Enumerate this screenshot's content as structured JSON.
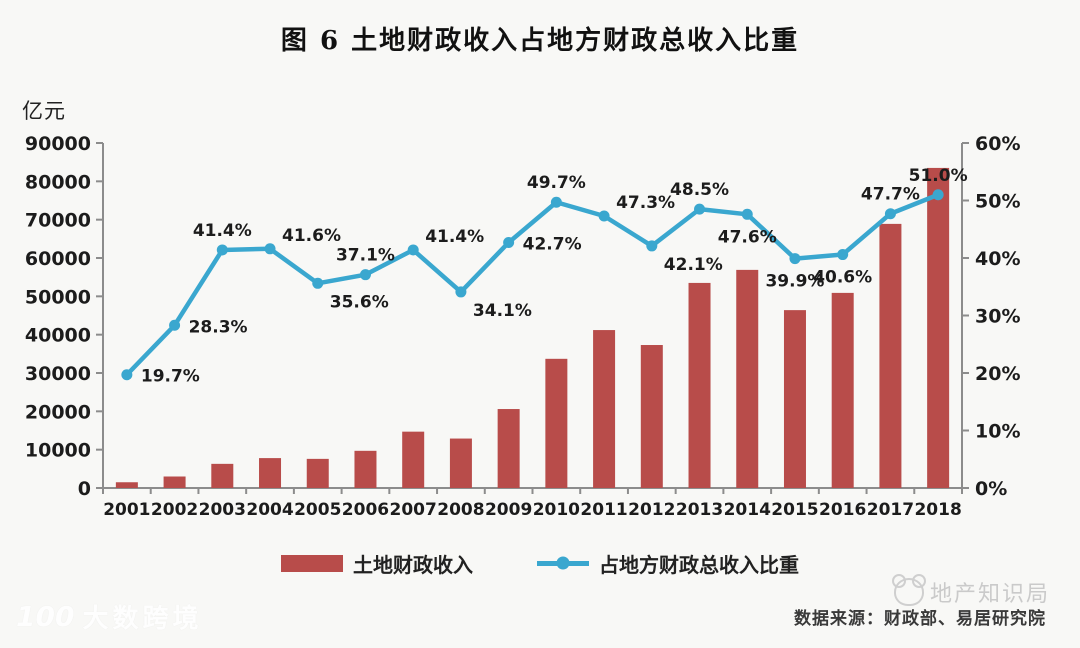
{
  "title": "图 6 土地财政收入占地方财政总收入比重",
  "left_axis_unit": "亿元",
  "chart_data": {
    "type": "combo-bar-line",
    "categories": [
      "2001",
      "2002",
      "2003",
      "2004",
      "2005",
      "2006",
      "2007",
      "2008",
      "2009",
      "2010",
      "2011",
      "2012",
      "2013",
      "2014",
      "2015",
      "2016",
      "2017",
      "2018"
    ],
    "series": [
      {
        "name": "土地财政收入",
        "type": "bar",
        "axis": "left",
        "color": "#b84c4a",
        "values": [
          1500,
          3000,
          6300,
          7800,
          7600,
          9700,
          14700,
          12900,
          20600,
          33700,
          41200,
          37300,
          53500,
          56900,
          46400,
          50900,
          68900,
          83500
        ]
      },
      {
        "name": "占地方财政总收入比重",
        "type": "line",
        "axis": "right",
        "color": "#3aa7cf",
        "values": [
          19.7,
          28.3,
          41.4,
          41.6,
          35.6,
          37.1,
          41.4,
          34.1,
          42.7,
          49.7,
          47.3,
          42.1,
          48.5,
          47.6,
          39.9,
          40.6,
          47.7,
          51.0
        ],
        "data_labels": [
          "19.7%",
          "28.3%",
          "41.4%",
          "41.6%",
          "35.6%",
          "37.1%",
          "41.4%",
          "34.1%",
          "42.7%",
          "49.7%",
          "47.3%",
          "42.1%",
          "48.5%",
          "47.6%",
          "39.9%",
          "40.6%",
          "47.7%",
          "51.0%"
        ],
        "label_pos": [
          "right",
          "right",
          "above",
          "above-right",
          "below-right",
          "above",
          "above-right",
          "below-right",
          "right",
          "above",
          "above-right",
          "below-right",
          "above",
          "below",
          "below",
          "below",
          "above",
          "above"
        ]
      }
    ],
    "left_axis": {
      "unit": "亿元",
      "min": 0,
      "max": 90000,
      "step": 10000,
      "tick_labels": [
        "0",
        "10000",
        "20000",
        "30000",
        "40000",
        "50000",
        "60000",
        "70000",
        "80000",
        "90000"
      ]
    },
    "right_axis": {
      "min": 0,
      "max": 60,
      "step": 10,
      "suffix": "%",
      "tick_labels": [
        "0%",
        "10%",
        "20%",
        "30%",
        "40%",
        "50%",
        "60%"
      ]
    },
    "grid": false,
    "legend_position": "bottom"
  },
  "footer": {
    "source": "数据来源：财政部、易居研究院"
  },
  "watermarks": {
    "bottom_left_logo": "100",
    "bottom_left": "大数跨境",
    "bottom_right": "地产知识局"
  },
  "colors": {
    "bar": "#b84c4a",
    "line": "#3aa7cf",
    "axis": "#8c8c8c",
    "text": "#1c1c1c"
  }
}
